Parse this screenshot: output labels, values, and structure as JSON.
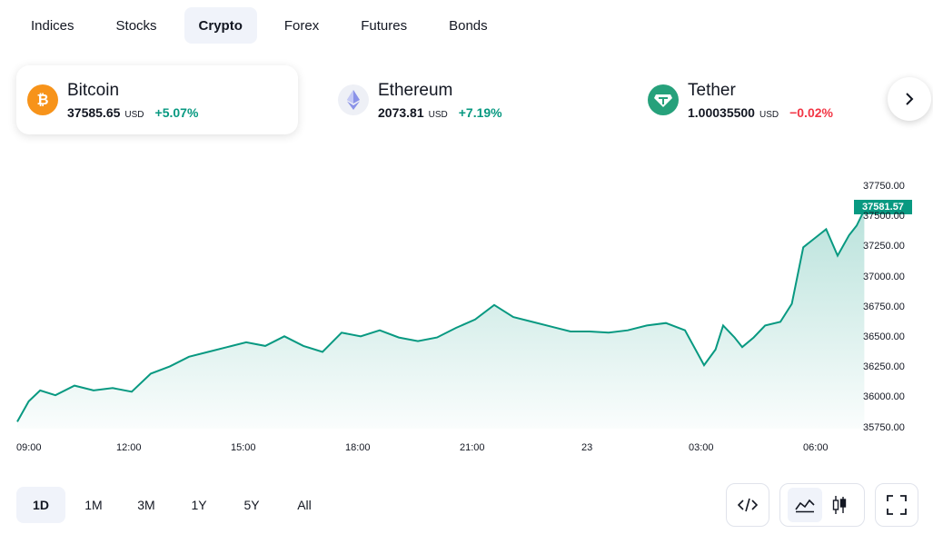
{
  "tabs": [
    {
      "label": "Indices",
      "active": false
    },
    {
      "label": "Stocks",
      "active": false
    },
    {
      "label": "Crypto",
      "active": true
    },
    {
      "label": "Forex",
      "active": false
    },
    {
      "label": "Futures",
      "active": false
    },
    {
      "label": "Bonds",
      "active": false
    }
  ],
  "tickers": [
    {
      "name": "Bitcoin",
      "price": "37585.65",
      "currency": "USD",
      "change": "+5.07%",
      "direction": "up",
      "icon": "bitcoin-icon",
      "icon_color": "#f7931a"
    },
    {
      "name": "Ethereum",
      "price": "2073.81",
      "currency": "USD",
      "change": "+7.19%",
      "direction": "up",
      "icon": "ethereum-icon",
      "icon_color": "#627eea"
    },
    {
      "name": "Tether",
      "price": "1.00035500",
      "currency": "USD",
      "change": "−0.02%",
      "direction": "down",
      "icon": "tether-icon",
      "icon_color": "#26a17b"
    }
  ],
  "chart_data": {
    "type": "area",
    "series_color": "#089981",
    "last_value": "37581.57",
    "y_ticks": [
      "37750.00",
      "37500.00",
      "37250.00",
      "37000.00",
      "36750.00",
      "36500.00",
      "36250.00",
      "36000.00",
      "35750.00"
    ],
    "ylim": [
      35750,
      37750
    ],
    "x_ticks": [
      "09:00",
      "12:00",
      "15:00",
      "18:00",
      "21:00",
      "23",
      "03:00",
      "06:00"
    ],
    "x": [
      0,
      0.3,
      0.6,
      1.0,
      1.5,
      2.0,
      2.5,
      3.0,
      3.5,
      4.0,
      4.5,
      5.0,
      5.5,
      6.0,
      6.5,
      7.0,
      7.5,
      8.0,
      8.5,
      9.0,
      9.5,
      10.0,
      10.5,
      11.0,
      11.5,
      12.0,
      12.5,
      13.0,
      13.5,
      14.0,
      14.5,
      15.0,
      15.5,
      16.0,
      16.5,
      17.0,
      17.5,
      18.0,
      18.3,
      18.5,
      18.8,
      19.0,
      19.3,
      19.6,
      20.0,
      20.3,
      20.6,
      21.0,
      21.2,
      21.5,
      21.8,
      22.0,
      22.2
    ],
    "values": [
      35800,
      35970,
      36060,
      36020,
      36100,
      36060,
      36080,
      36050,
      36200,
      36260,
      36340,
      36380,
      36420,
      36460,
      36430,
      36510,
      36430,
      36380,
      36540,
      36510,
      36560,
      36500,
      36470,
      36500,
      36580,
      36650,
      36770,
      36670,
      36630,
      36590,
      36550,
      36550,
      36540,
      36560,
      36600,
      36620,
      36560,
      36270,
      36400,
      36600,
      36500,
      36420,
      36500,
      36600,
      36630,
      36780,
      37250,
      37350,
      37400,
      37180,
      37350,
      37430,
      37560
    ]
  },
  "ranges": [
    {
      "label": "1D",
      "active": true
    },
    {
      "label": "1M",
      "active": false
    },
    {
      "label": "3M",
      "active": false
    },
    {
      "label": "1Y",
      "active": false
    },
    {
      "label": "5Y",
      "active": false
    },
    {
      "label": "All",
      "active": false
    }
  ],
  "tools": {
    "embed": "embed-code-icon",
    "area_chart": "area-chart-icon",
    "candles": "candlestick-icon",
    "fullscreen": "fullscreen-icon"
  }
}
